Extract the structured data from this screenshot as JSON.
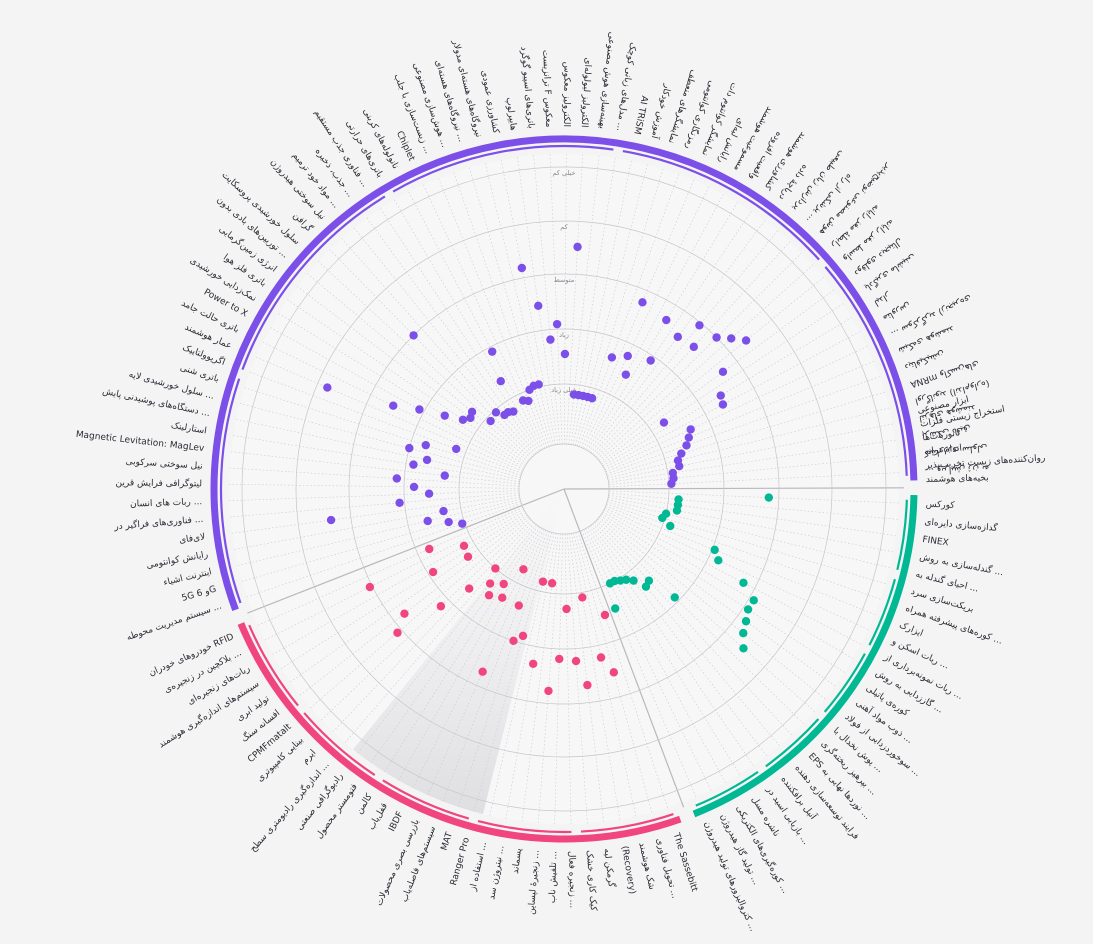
{
  "chart_data": {
    "type": "scatter",
    "layout_type": "radial",
    "radial_levels": [
      "خیلی زیاد",
      "زیاد",
      "متوسط",
      "کم",
      "خیلی کم"
    ],
    "groups": [
      {
        "name": "",
        "color": "#00b894",
        "items": [
          {
            "label": "کورکس",
            "level": 0.56
          },
          {
            "label": "گدازه‌سازی دایره‌ای",
            "level": 0.2
          },
          {
            "label": "FINEX",
            "level": 0.2
          },
          {
            "label": "گندله‌سازی به روش ...",
            "level": 0.2
          },
          {
            "label": "احیای گندله به ...",
            "level": 0.16
          },
          {
            "label": "بریکت‌سازی سرد",
            "level": 0.15
          },
          {
            "label": "کوره‌های پیشرفته همراه ...",
            "level": 0.19
          },
          {
            "label": "ایزارک",
            "level": 0.39
          },
          {
            "label": "ربات اسکن و ...",
            "level": 0.42
          },
          {
            "label": "ربات نمونه‌برداری از ...",
            "level": 0.55
          },
          {
            "label": "گاززدایی به روش ...",
            "level": 0.62
          },
          {
            "label": "کوره‌ی پاتیلی",
            "level": 0.62
          },
          {
            "label": "ذوب مواد آهنی ...",
            "level": 0.64
          },
          {
            "label": "سوخوردزدایی از فولاد ...",
            "level": 0.66
          },
          {
            "label": "پوش نخدال با ...",
            "level": 0.7
          },
          {
            "label": "بپرهیز ریخته‌گری ...",
            "level": 0.36
          },
          {
            "label": "EPS نوردها نهایی به ...",
            "level": 0.24
          },
          {
            "label": "فرایند توسعه‌سازی دهنده",
            "level": 0.25
          },
          {
            "label": "آنیل برافکننده",
            "level": 0.2
          },
          {
            "label": "بازیابی اسید در ...",
            "level": 0.18
          },
          {
            "label": "ناشره مسل",
            "level": 0.17
          },
          {
            "label": "کوره‌گیری‌های الکتریکی ...",
            "level": 0.16
          },
          {
            "label": "تولید گاز هیدروژن ...",
            "level": 0.16
          },
          {
            "label": "کتروالیزورهای تولید هیدروژن ...",
            "level": 0.26
          }
        ]
      },
      {
        "name": "",
        "color": "#f0457f",
        "items": [
          {
            "label": "The Sassebitt",
            "level": 0.27
          },
          {
            "label": "تحویل فناوری ...",
            "level": 0.5
          },
          {
            "label": "شک هوشمند",
            "level": 0.43
          },
          {
            "label": "(Recovery)",
            "level": 0.18
          },
          {
            "label": "گرمکن لیه",
            "level": 0.53
          },
          {
            "label": "کیک کاری خشک",
            "level": 0.43
          },
          {
            "label": "زنجیره فعال ...",
            "level": 0.22
          },
          {
            "label": "تلفیش ناب ...",
            "level": 0.42
          },
          {
            "label": "زنجیرهٔ لپساین ...",
            "level": 0.55
          },
          {
            "label": "پسماند",
            "level": 0.12
          },
          {
            "label": "نیتروژن سد‌ ...",
            "level": 0.45
          },
          {
            "label": "استفاده از ...",
            "level": 0.12
          },
          {
            "label": "Ranger Pro",
            "level": 0.35
          },
          {
            "label": "MAT",
            "level": 0.38
          },
          {
            "label": "سیستم‌های فاصله‌یاب",
            "level": 0.24
          },
          {
            "label": "بازرسی بصری محصولات",
            "level": 0.54
          },
          {
            "label": "IBDF",
            "level": 0.1
          },
          {
            "label": "قفل‌یاب",
            "level": 0.24
          },
          {
            "label": "کالمن",
            "level": 0.19
          },
          {
            "label": "فتومستر محصول",
            "level": 0.26
          },
          {
            "label": "رادیوگرافی صنعتی",
            "level": 0.22
          },
          {
            "label": "اندازه‌گیری رادیومتری سطح ...",
            "level": 0.16
          },
          {
            "label": "ایرم",
            "level": 0.29
          },
          {
            "label": "بینایی کامپیوتری",
            "level": 0.42
          },
          {
            "label": "CPMFmatalt",
            "level": 0.62
          },
          {
            "label": "افسانه سنگ",
            "level": 0.55
          },
          {
            "label": "تولید ابری",
            "level": 0.21
          },
          {
            "label": "سیستم‌های اندازه‌گیری هوشمند",
            "level": 0.36
          },
          {
            "label": "ربات‌های زنجیره‌ای",
            "level": 0.2
          },
          {
            "label": "بلاکچین در زنجیره‌ی ...",
            "level": 0.61
          },
          {
            "label": "خودروهای خودران RFID",
            "level": 0.33
          }
        ]
      },
      {
        "name": "",
        "color": "#7b4fe8",
        "items": [
          {
            "label": "سیستم مدیریت محوطه ...",
            "level": 0.17
          },
          {
            "label": "5G و 6G",
            "level": 0.22
          },
          {
            "label": "اینترنت اشیاء",
            "level": 0.3
          },
          {
            "label": "رایانش کوانتومی",
            "level": 0.23
          },
          {
            "label": "لای‌فای",
            "level": 0.68
          },
          {
            "label": "فناوری‌های فراگیر در ...",
            "level": 0.4
          },
          {
            "label": "ربات های انسان ...",
            "level": 0.28
          },
          {
            "label": "لیتوگرافی فرایش قرین",
            "level": 0.34
          },
          {
            "label": "نیل سوختی سرکوبی",
            "level": 0.41
          },
          {
            "label": "Magnetic Levitation: MagLev",
            "level": 0.22
          },
          {
            "label": "استارلینک",
            "level": 0.35
          },
          {
            "label": "دستگاه‌های پوشیدنی پایش ...",
            "level": 0.3
          },
          {
            "label": "سلول خورشیدی لایه ...",
            "level": 0.38
          },
          {
            "label": "باتری شنی",
            "level": 0.32
          },
          {
            "label": "اگریوولتاییک",
            "level": 0.2
          },
          {
            "label": "عمار هوشمند",
            "level": 0.77
          },
          {
            "label": "باتری حالت جامد",
            "level": 0.5
          },
          {
            "label": "Power to X",
            "level": 0.4
          },
          {
            "label": "نمک‌زدایی خورشیدی",
            "level": 0.3
          },
          {
            "label": "باتری فلز هوا",
            "level": 0.23
          },
          {
            "label": "انرژی زمین‌گرمایی",
            "level": 0.21
          },
          {
            "label": "توربین‌های بادی بدون ...",
            "level": 0.22
          },
          {
            "label": "سلول خورشیدی پروسکایت",
            "level": 0.14
          },
          {
            "label": "گرافن",
            "level": 0.6
          },
          {
            "label": "نیل سوختی هیدروژن",
            "level": 0.15
          },
          {
            "label": "مواد خود ترمیم ...",
            "level": 0.12
          },
          {
            "label": "جذب، ذخیره ...",
            "level": 0.12
          },
          {
            "label": "فناوری جذب مستقیم ...",
            "level": 0.11
          },
          {
            "label": "باتری‌های حرارتی",
            "level": 0.24
          },
          {
            "label": "نانولوله‌های کربنی",
            "level": 0.36
          },
          {
            "label": "Chiplet",
            "level": 0.13
          },
          {
            "label": "زیست‌سازی با جلب ...",
            "level": 0.12
          },
          {
            "label": "هوش‌سازی مصنوعی ...",
            "level": 0.16
          },
          {
            "label": "نیروگاه‌های هسته‌ای ...",
            "level": 0.17
          },
          {
            "label": "نیروگاه‌های هسته‌ای مدولار",
            "level": 0.17
          },
          {
            "label": "کشاورزی عمودی",
            "level": 0.64
          },
          {
            "label": "هایپرلوپ",
            "level": 0.48
          },
          {
            "label": "باتری‌های اسپیو گوگرد",
            "level": 0.34
          },
          {
            "label": "ترانزیست F معکوس",
            "level": 0.4
          },
          {
            "label": "الکترولیز معکوس",
            "level": 0.28
          },
          {
            "label": "الکترولیز لیولوله‌ای",
            "level": 0.71
          },
          {
            "label": "بهینه‌سازی هوش مصنوعی",
            "level": 0.12
          },
          {
            "label": "مدل‌های زبانی کوچک ...",
            "level": 0.12
          },
          {
            "label": "AI TRiSM",
            "level": 0.12
          },
          {
            "label": "آموزش خودکار",
            "level": 0.12
          },
          {
            "label": "نمایشگرهای منعطف",
            "level": 0.12
          },
          {
            "label": "رمزنگاری کوانتومی",
            "level": 0.3
          },
          {
            "label": "نمایشگر کوانتوم دات",
            "level": 0.55
          },
          {
            "label": "رایانش لبه‌ای",
            "level": 0.33
          },
          {
            "label": "مسموعیت هوشمند",
            "level": 0.26
          },
          {
            "label": "واقعیت افزوده",
            "level": 0.53
          },
          {
            "label": "کشاورزی هوشمند",
            "level": 0.36
          },
          {
            "label": "دریاچهٔ داده",
            "level": 0.5
          },
          {
            "label": "پردازش زبان طبیعی",
            "level": 0.59
          },
          {
            "label": "پزشکی از راه ...",
            "level": 0.51
          },
          {
            "label": "هوش مصنوعی توضیح‌پذیر",
            "level": 0.6
          },
          {
            "label": "رابطهٔ مغز رایانه",
            "level": 0.64
          },
          {
            "label": "واسط مغز رایانه",
            "level": 0.68
          },
          {
            "label": "دوقلوی دیجیتال",
            "level": 0.53
          },
          {
            "label": "یادگیری ماشینی",
            "level": 0.22
          },
          {
            "label": "لیدار",
            "level": 0.47
          },
          {
            "label": "متاورس",
            "level": 0.46
          },
          {
            "label": "سوکرگرید (زنجیره‌ی ...",
            "level": 0.3
          },
          {
            "label": "شبکه‌ی هوشمند",
            "level": 0.28
          },
          {
            "label": "دیتافیکیشن",
            "level": 0.26
          },
          {
            "label": "واکسن‌های mRNA",
            "level": 0.23
          },
          {
            "label": "اورگانوید (اندام‌واره)",
            "level": 0.21
          },
          {
            "label": "لنزهای هوشمند",
            "level": 0.21
          },
          {
            "label": "پزشکی دقیق",
            "level": 0.18
          },
          {
            "label": "کشاورزی سلولی",
            "level": 0.18
          },
          {
            "label": "ویرایش ژن به ...",
            "level": 0.17
          }
        ]
      }
    ],
    "extra_labels": [
      "ابزار مصنوعی",
      "استخراج زیستی فلزات",
      "نانوربات‌ها",
      "اندام ترانه",
      "روان‌کننده‌های زیست تخریب‌پذیر",
      "بخیه‌های هوشمند"
    ]
  }
}
